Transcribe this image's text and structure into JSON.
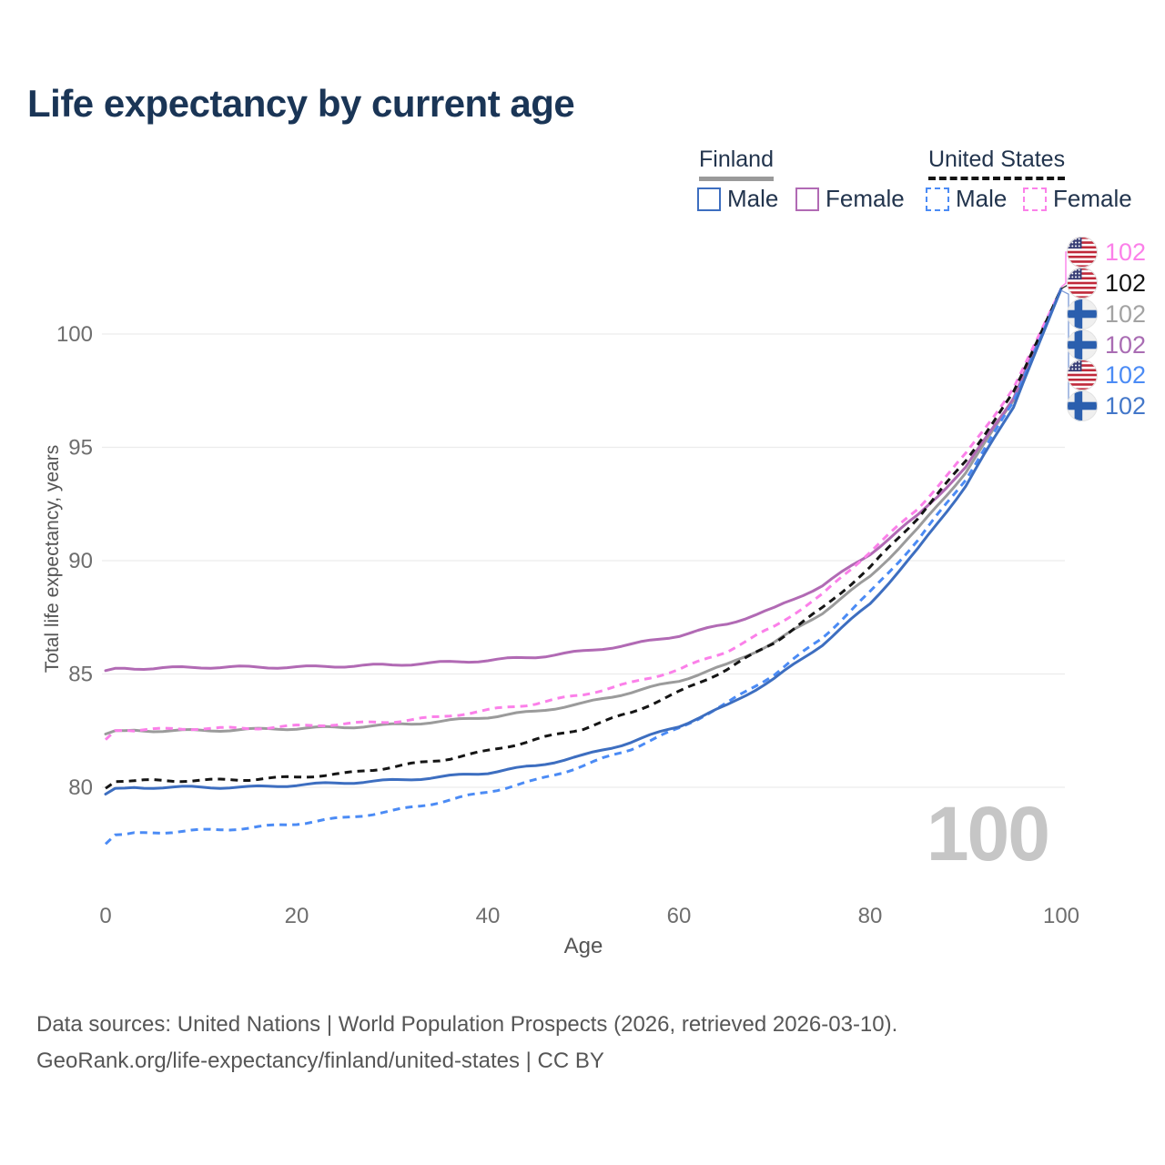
{
  "title": "Life expectancy by current age",
  "legend": {
    "groups": [
      {
        "id": "finland",
        "label": "Finland",
        "rule_style": "solid",
        "rule_color": "#9a9a9a",
        "items": [
          {
            "id": "fi-male",
            "label": "Male",
            "color": "#3d6ec0",
            "dash": "solid"
          },
          {
            "id": "fi-female",
            "label": "Female",
            "color": "#b16ab4",
            "dash": "solid"
          }
        ]
      },
      {
        "id": "united-states",
        "label": "United States",
        "rule_style": "dashed",
        "rule_color": "#141414",
        "items": [
          {
            "id": "us-male",
            "label": "Male",
            "color": "#4b8bf5",
            "dash": "dashed"
          },
          {
            "id": "us-female",
            "label": "Female",
            "color": "#fb80e9",
            "dash": "dashed"
          }
        ]
      }
    ]
  },
  "watermark": "100",
  "end_labels": [
    {
      "value": "102",
      "flag": "us",
      "color": "#fb80e9",
      "series": "us-female"
    },
    {
      "value": "102",
      "flag": "us",
      "color": "#141414",
      "series": "us-total"
    },
    {
      "value": "102",
      "flag": "fi",
      "color": "#a3a3a3",
      "series": "fi-total"
    },
    {
      "value": "102",
      "flag": "fi",
      "color": "#a96cb3",
      "series": "fi-female"
    },
    {
      "value": "102",
      "flag": "us",
      "color": "#4b8bf5",
      "series": "us-male"
    },
    {
      "value": "102",
      "flag": "fi",
      "color": "#4377c9",
      "series": "fi-male"
    }
  ],
  "footer": {
    "line1": "Data sources: United Nations | World Population Prospects (2026, retrieved 2026-03-10).",
    "line2": "GeoRank.org/life-expectancy/finland/united-states | CC BY"
  },
  "chart_data": {
    "type": "line",
    "title": "Life expectancy by current age",
    "xlabel": "Age",
    "ylabel": "Total life expectancy, years",
    "x_ticks": [
      0,
      20,
      40,
      60,
      80,
      100
    ],
    "y_ticks": [
      100,
      95,
      90,
      85,
      80
    ],
    "xlim": [
      0,
      100
    ],
    "ylim": [
      76.5,
      103
    ],
    "grid": "horizontal",
    "legend_position": "top-right",
    "x": [
      0,
      1,
      5,
      10,
      15,
      20,
      25,
      30,
      35,
      40,
      45,
      50,
      55,
      60,
      65,
      70,
      75,
      80,
      85,
      90,
      95,
      100
    ],
    "series": [
      {
        "id": "fi-total",
        "name": "Finland (all)",
        "country": "Finland",
        "color": "#9b9b9b",
        "dash": "solid",
        "values": [
          82.35,
          82.5,
          82.5,
          82.5,
          82.55,
          82.6,
          82.65,
          82.75,
          82.9,
          83.1,
          83.35,
          83.7,
          84.2,
          84.7,
          85.4,
          86.4,
          87.7,
          89.3,
          91.4,
          93.9,
          97.1,
          102
        ]
      },
      {
        "id": "fi-female",
        "name": "Finland Female",
        "country": "Finland",
        "color": "#b16ab4",
        "dash": "solid",
        "values": [
          85.15,
          85.25,
          85.25,
          85.3,
          85.3,
          85.3,
          85.35,
          85.4,
          85.5,
          85.6,
          85.75,
          86.0,
          86.3,
          86.7,
          87.2,
          87.9,
          88.9,
          90.3,
          92.0,
          94.1,
          97.2,
          102
        ]
      },
      {
        "id": "us-female",
        "name": "United States Female",
        "country": "United States",
        "color": "#fb80e9",
        "dash": "dashed",
        "values": [
          82.1,
          82.5,
          82.55,
          82.6,
          82.6,
          82.7,
          82.8,
          82.9,
          83.1,
          83.4,
          83.7,
          84.1,
          84.6,
          85.2,
          86.0,
          87.1,
          88.5,
          90.4,
          92.3,
          94.7,
          97.6,
          102
        ]
      },
      {
        "id": "us-total",
        "name": "United States (all)",
        "country": "United States",
        "color": "#151515",
        "dash": "dashed",
        "values": [
          79.95,
          80.25,
          80.3,
          80.3,
          80.35,
          80.45,
          80.6,
          80.9,
          81.2,
          81.6,
          82.1,
          82.6,
          83.3,
          84.2,
          85.2,
          86.4,
          87.9,
          89.7,
          91.9,
          94.4,
          97.4,
          102
        ]
      },
      {
        "id": "us-male",
        "name": "United States Male",
        "country": "United States",
        "color": "#4b8bf5",
        "dash": "dashed",
        "values": [
          77.5,
          77.9,
          78.0,
          78.1,
          78.2,
          78.4,
          78.65,
          78.95,
          79.35,
          79.8,
          80.3,
          80.95,
          81.7,
          82.6,
          83.7,
          85.0,
          86.6,
          88.6,
          90.9,
          93.6,
          97.0,
          102
        ]
      },
      {
        "id": "fi-male",
        "name": "Finland Male",
        "country": "Finland",
        "color": "#3d6ec0",
        "dash": "solid",
        "values": [
          79.7,
          79.95,
          80.0,
          80.0,
          80.0,
          80.1,
          80.2,
          80.3,
          80.45,
          80.65,
          80.95,
          81.4,
          82.0,
          82.7,
          83.6,
          84.8,
          86.3,
          88.1,
          90.5,
          93.3,
          96.8,
          102
        ]
      }
    ]
  }
}
